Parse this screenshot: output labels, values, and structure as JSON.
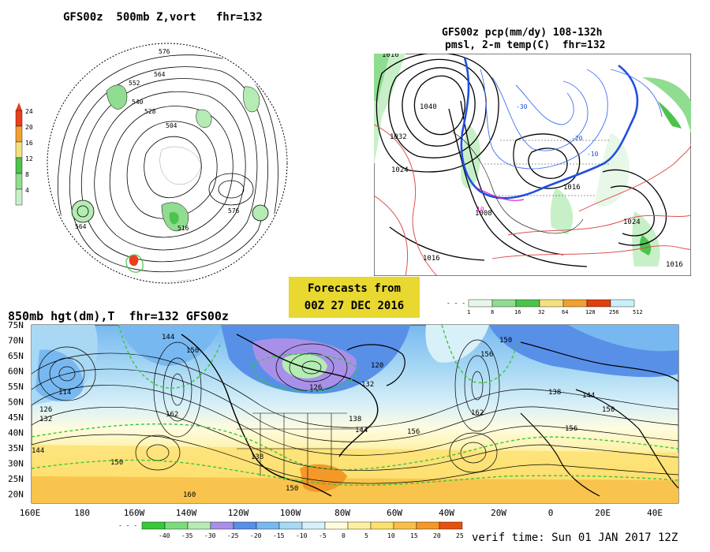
{
  "banner": {
    "line1": "Forecasts from",
    "line2": "00Z 27 DEC 2016"
  },
  "panel_500mb": {
    "title": "GFS00z  500mb Z,vort   fhr=132",
    "colorbar_labels": [
      "24",
      "20",
      "16",
      "12",
      "8",
      "4"
    ],
    "colorbar_colors": [
      "#e8401c",
      "#f2a030",
      "#f4e080",
      "#4cc44c",
      "#90dc90",
      "#c8f0c8"
    ],
    "contour_labels": [
      "576",
      "564",
      "552",
      "540",
      "528",
      "516",
      "504",
      "564",
      "576"
    ]
  },
  "panel_precip": {
    "title_line1": "GFS00z pcp(mm/dy) 108-132h",
    "title_line2": "pmsl, 2-m temp(C)  fhr=132",
    "isobar_labels": [
      "1040",
      "1032",
      "1024",
      "1016",
      "1008",
      "1016",
      "1024",
      "1016"
    ],
    "colorbar_labels": [
      "1",
      "8",
      "16",
      "32",
      "64",
      "128",
      "256",
      "512"
    ],
    "colorbar_colors": [
      "#e8f8e8",
      "#90dc90",
      "#4cc44c",
      "#f4e080",
      "#f2a030",
      "#e04010",
      "#c8f0f8"
    ]
  },
  "panel_850mb": {
    "title": "850mb hgt(dm),T  fhr=132 GFS00z",
    "lat_labels": [
      "75N",
      "70N",
      "65N",
      "60N",
      "55N",
      "50N",
      "45N",
      "40N",
      "35N",
      "30N",
      "25N",
      "20N"
    ],
    "lon_labels": [
      "160E",
      "180",
      "160W",
      "140W",
      "120W",
      "100W",
      "80W",
      "60W",
      "40W",
      "20W",
      "0",
      "20E",
      "40E"
    ],
    "height_labels": [
      "144",
      "150",
      "156",
      "162",
      "138",
      "132",
      "126",
      "120",
      "114",
      "150",
      "156"
    ],
    "colorbar_labels": [
      "-40",
      "-35",
      "-30",
      "-25",
      "-20",
      "-15",
      "-10",
      "-5",
      "0",
      "5",
      "10",
      "15",
      "20",
      "25"
    ],
    "colorbar_colors": [
      "#38c838",
      "#7cdc7c",
      "#b4ecb4",
      "#a890e8",
      "#5890e8",
      "#78b8f0",
      "#a8d8f4",
      "#d8f0f8",
      "#fffce0",
      "#fcf0a0",
      "#fce070",
      "#f8c048",
      "#f49828",
      "#e85010"
    ]
  },
  "verif": "verif time: Sun 01 JAN 2017 12Z"
}
